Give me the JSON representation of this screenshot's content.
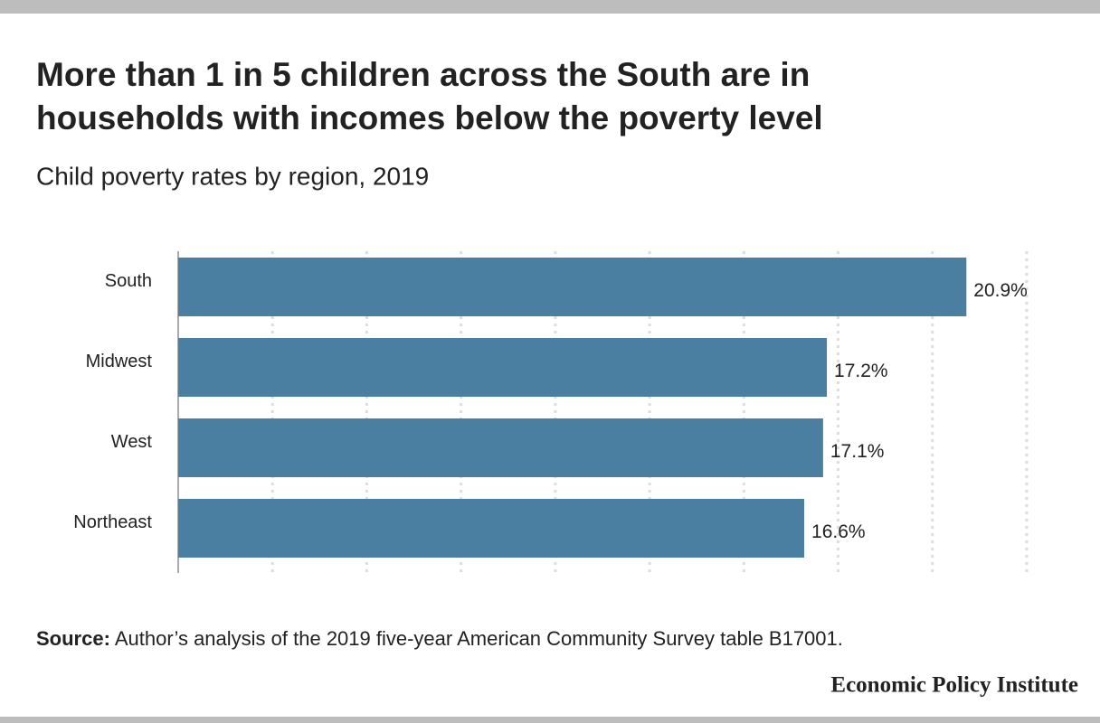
{
  "chart_data": {
    "type": "bar",
    "orientation": "horizontal",
    "title": [
      "More than 1 in 5 children across the South are in",
      "households with incomes below the poverty level"
    ],
    "subtitle": "Child poverty rates by region, 2019",
    "categories": [
      "South",
      "Midwest",
      "West",
      "Northeast"
    ],
    "values": [
      20.9,
      17.2,
      17.1,
      16.6
    ],
    "value_labels": [
      "20.9%",
      "17.2%",
      "17.1%",
      "16.6%"
    ],
    "color": "#4a7fa2",
    "xlim": [
      0,
      22.5
    ],
    "xticks": [
      0,
      2.5,
      5,
      7.5,
      10,
      12.5,
      15,
      17.5,
      20,
      22.5
    ],
    "grid": true,
    "source_label": "Source:",
    "source": "Author’s analysis of the 2019 five-year American Community Survey table B17001.",
    "publisher": "Economic Policy Institute"
  }
}
